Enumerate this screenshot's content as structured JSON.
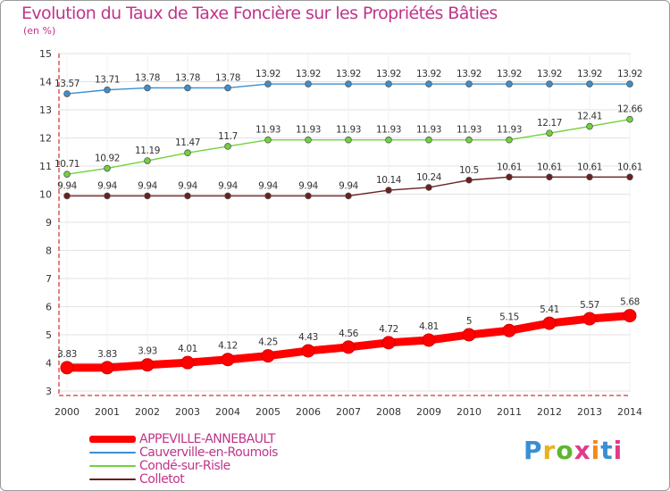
{
  "chart_data": {
    "type": "line",
    "title": "Evolution du Taux de Taxe Foncière sur les Propriétés Bâties",
    "ylabel": "(en %)",
    "xlabel": "",
    "ylim": [
      3,
      15
    ],
    "yticks": [
      3,
      4,
      5,
      6,
      7,
      8,
      9,
      10,
      11,
      12,
      13,
      14,
      15
    ],
    "categories": [
      "2000",
      "2001",
      "2002",
      "2003",
      "2004",
      "2005",
      "2006",
      "2007",
      "2008",
      "2009",
      "2010",
      "2011",
      "2012",
      "2013",
      "2014"
    ],
    "series": [
      {
        "name": "APPEVILLE-ANNEBAULT",
        "color": "#ff0000",
        "bold": true,
        "values": [
          3.83,
          3.83,
          3.93,
          4.01,
          4.12,
          4.25,
          4.43,
          4.56,
          4.72,
          4.81,
          5,
          5.15,
          5.41,
          5.57,
          5.68
        ],
        "labels": [
          "3.83",
          "3.83",
          "3.93",
          "4.01",
          "4.12",
          "4.25",
          "4.43",
          "4.56",
          "4.72",
          "4.81",
          "5",
          "5.15",
          "5.41",
          "5.57",
          "5.68"
        ]
      },
      {
        "name": "Cauverville-en-Roumois",
        "color": "#3b8fd0",
        "bold": false,
        "values": [
          13.57,
          13.71,
          13.78,
          13.78,
          13.78,
          13.92,
          13.92,
          13.92,
          13.92,
          13.92,
          13.92,
          13.92,
          13.92,
          13.92,
          13.92
        ],
        "labels": [
          "13.57",
          "13.71",
          "13.78",
          "13.78",
          "13.78",
          "13.92",
          "13.92",
          "13.92",
          "13.92",
          "13.92",
          "13.92",
          "13.92",
          "13.92",
          "13.92",
          "13.92"
        ]
      },
      {
        "name": "Condé-sur-Risle",
        "color": "#6fd33b",
        "bold": false,
        "values": [
          10.71,
          10.92,
          11.19,
          11.47,
          11.7,
          11.93,
          11.93,
          11.93,
          11.93,
          11.93,
          11.93,
          11.93,
          12.17,
          12.41,
          12.66
        ],
        "labels": [
          "10.71",
          "10.92",
          "11.19",
          "11.47",
          "11.7",
          "11.93",
          "11.93",
          "11.93",
          "11.93",
          "11.93",
          "11.93",
          "11.93",
          "12.17",
          "12.41",
          "12.66"
        ]
      },
      {
        "name": "Colletot",
        "color": "#6b1f1f",
        "bold": false,
        "values": [
          9.94,
          9.94,
          9.94,
          9.94,
          9.94,
          9.94,
          9.94,
          9.94,
          10.14,
          10.24,
          10.5,
          10.61,
          10.61,
          10.61,
          10.61
        ],
        "labels": [
          "9.94",
          "9.94",
          "9.94",
          "9.94",
          "9.94",
          "9.94",
          "9.94",
          "9.94",
          "10.14",
          "10.24",
          "10.5",
          "10.61",
          "10.61",
          "10.61",
          "10.61"
        ]
      }
    ],
    "legend_position": "bottom-left"
  },
  "brand": {
    "logo_text": "Proxiti"
  }
}
